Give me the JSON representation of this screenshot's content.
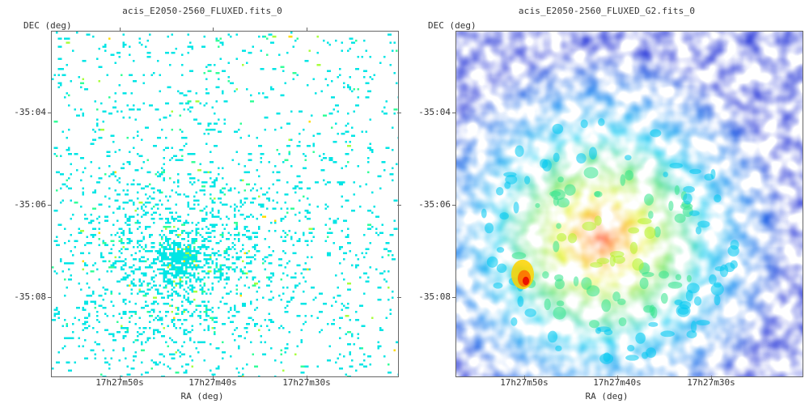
{
  "panels": [
    {
      "id": "left",
      "title": "acis_E2050-2560_FLUXED.fits_0",
      "y_axis_label": "DEC (deg)",
      "x_axis_label": "RA (deg)",
      "y_ticks": [
        "-35:04",
        "-35:06",
        "-35:08"
      ],
      "x_ticks": [
        "17h27m50s",
        "17h27m40s",
        "17h27m30s"
      ],
      "rendering": "sparse-pixels",
      "colormap": [
        "#00e5e5",
        "#33ff99",
        "#a8ff3e",
        "#ffdd00"
      ]
    },
    {
      "id": "right",
      "title": "acis_E2050-2560_FLUXED_G2.fits_0",
      "y_axis_label": "DEC (deg)",
      "x_axis_label": "RA (deg)",
      "y_ticks": [
        "-35:04",
        "-35:06",
        "-35:08"
      ],
      "x_ticks": [
        "17h27m50s",
        "17h27m40s",
        "17h27m30s"
      ],
      "rendering": "smoothed-heatmap",
      "colormap": [
        "#1a1ad6",
        "#0b6cf0",
        "#00c8f0",
        "#33e38c",
        "#b5f22a",
        "#ffd400",
        "#ff6a00",
        "#e60000"
      ]
    }
  ]
}
